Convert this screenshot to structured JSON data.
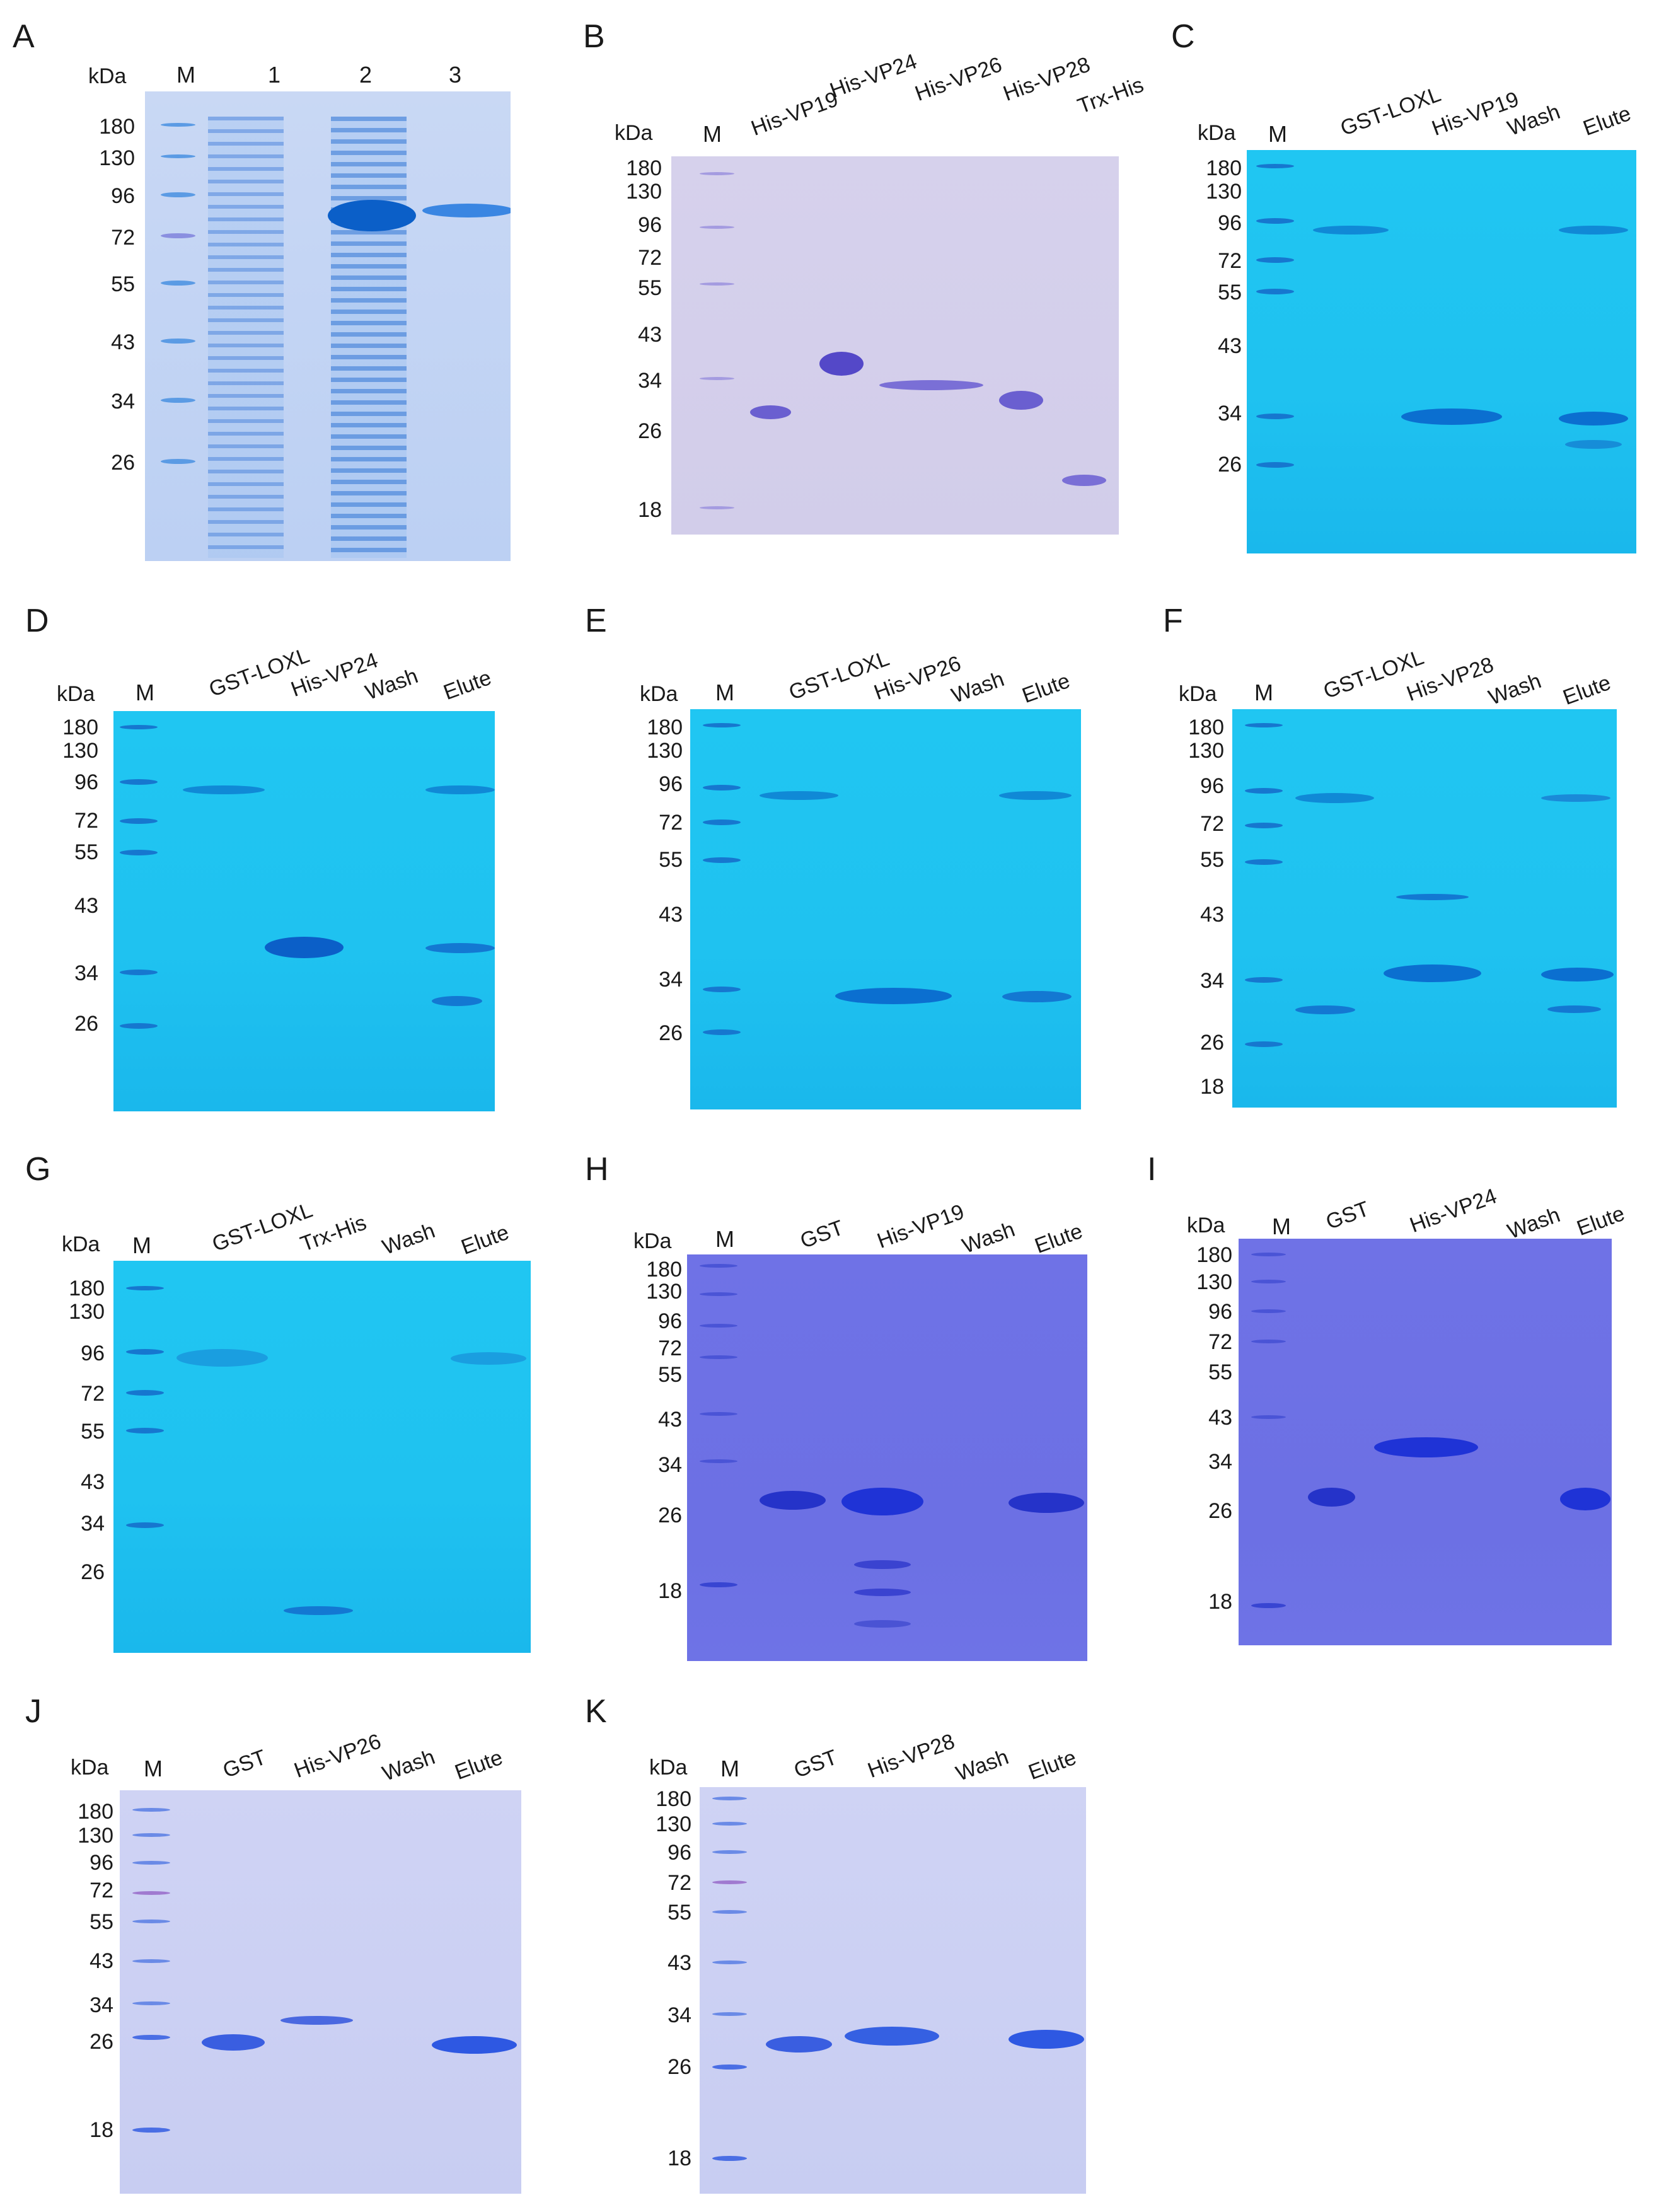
{
  "panels": [
    {
      "id": "A",
      "letter": "A",
      "lanes": [
        "M",
        "1",
        "2",
        "3"
      ],
      "markers": [
        "kDa",
        "180",
        "130",
        "96",
        "72",
        "55",
        "43",
        "34",
        "26"
      ]
    },
    {
      "id": "B",
      "letter": "B",
      "lanes": [
        "M",
        "His-VP19",
        "His-VP24",
        "His-VP26",
        "His-VP28",
        "Trx-His"
      ],
      "markers": [
        "kDa",
        "180",
        "130",
        "96",
        "72",
        "55",
        "43",
        "34",
        "26",
        "18"
      ]
    },
    {
      "id": "C",
      "letter": "C",
      "lanes": [
        "M",
        "GST-LOXL",
        "His-VP19",
        "Wash",
        "Elute"
      ],
      "markers": [
        "kDa",
        "180",
        "130",
        "96",
        "72",
        "55",
        "43",
        "34",
        "26"
      ]
    },
    {
      "id": "D",
      "letter": "D",
      "lanes": [
        "M",
        "GST-LOXL",
        "His-VP24",
        "Wash",
        "Elute"
      ],
      "markers": [
        "kDa",
        "180",
        "130",
        "96",
        "72",
        "55",
        "43",
        "34",
        "26"
      ]
    },
    {
      "id": "E",
      "letter": "E",
      "lanes": [
        "M",
        "GST-LOXL",
        "His-VP26",
        "Wash",
        "Elute"
      ],
      "markers": [
        "kDa",
        "180",
        "130",
        "96",
        "72",
        "55",
        "43",
        "34",
        "26"
      ]
    },
    {
      "id": "F",
      "letter": "F",
      "lanes": [
        "M",
        "GST-LOXL",
        "His-VP28",
        "Wash",
        "Elute"
      ],
      "markers": [
        "kDa",
        "180",
        "130",
        "96",
        "72",
        "55",
        "43",
        "34",
        "26",
        "18"
      ]
    },
    {
      "id": "G",
      "letter": "G",
      "lanes": [
        "M",
        "GST-LOXL",
        "Trx-His",
        "Wash",
        "Elute"
      ],
      "markers": [
        "kDa",
        "180",
        "130",
        "96",
        "72",
        "55",
        "43",
        "34",
        "26"
      ]
    },
    {
      "id": "H",
      "letter": "H",
      "lanes": [
        "M",
        "GST",
        "His-VP19",
        "Wash",
        "Elute"
      ],
      "markers": [
        "kDa",
        "180",
        "130",
        "96",
        "72",
        "55",
        "43",
        "34",
        "26",
        "18"
      ]
    },
    {
      "id": "I",
      "letter": "I",
      "lanes": [
        "M",
        "GST",
        "His-VP24",
        "Wash",
        "Elute"
      ],
      "markers": [
        "kDa",
        "180",
        "130",
        "96",
        "72",
        "55",
        "43",
        "34",
        "26",
        "18"
      ]
    },
    {
      "id": "J",
      "letter": "J",
      "lanes": [
        "M",
        "GST",
        "His-VP26",
        "Wash",
        "Elute"
      ],
      "markers": [
        "kDa",
        "180",
        "130",
        "96",
        "72",
        "55",
        "43",
        "34",
        "26",
        "18"
      ]
    },
    {
      "id": "K",
      "letter": "K",
      "lanes": [
        "M",
        "GST",
        "His-VP28",
        "Wash",
        "Elute"
      ],
      "markers": [
        "kDa",
        "180",
        "130",
        "96",
        "72",
        "55",
        "43",
        "34",
        "26",
        "18"
      ]
    }
  ],
  "colors": {
    "gel_blue": "#1fc2f0",
    "gel_pale": "#c2d4f3",
    "gel_purple": "#6c70e4",
    "gel_lavender": "#d4cfeb",
    "gel_lightblue": "#cbd0f3",
    "band_dark_blue": "#0b5fc8",
    "band_purple": "#2533c9",
    "band_blue": "#1f66d6"
  }
}
